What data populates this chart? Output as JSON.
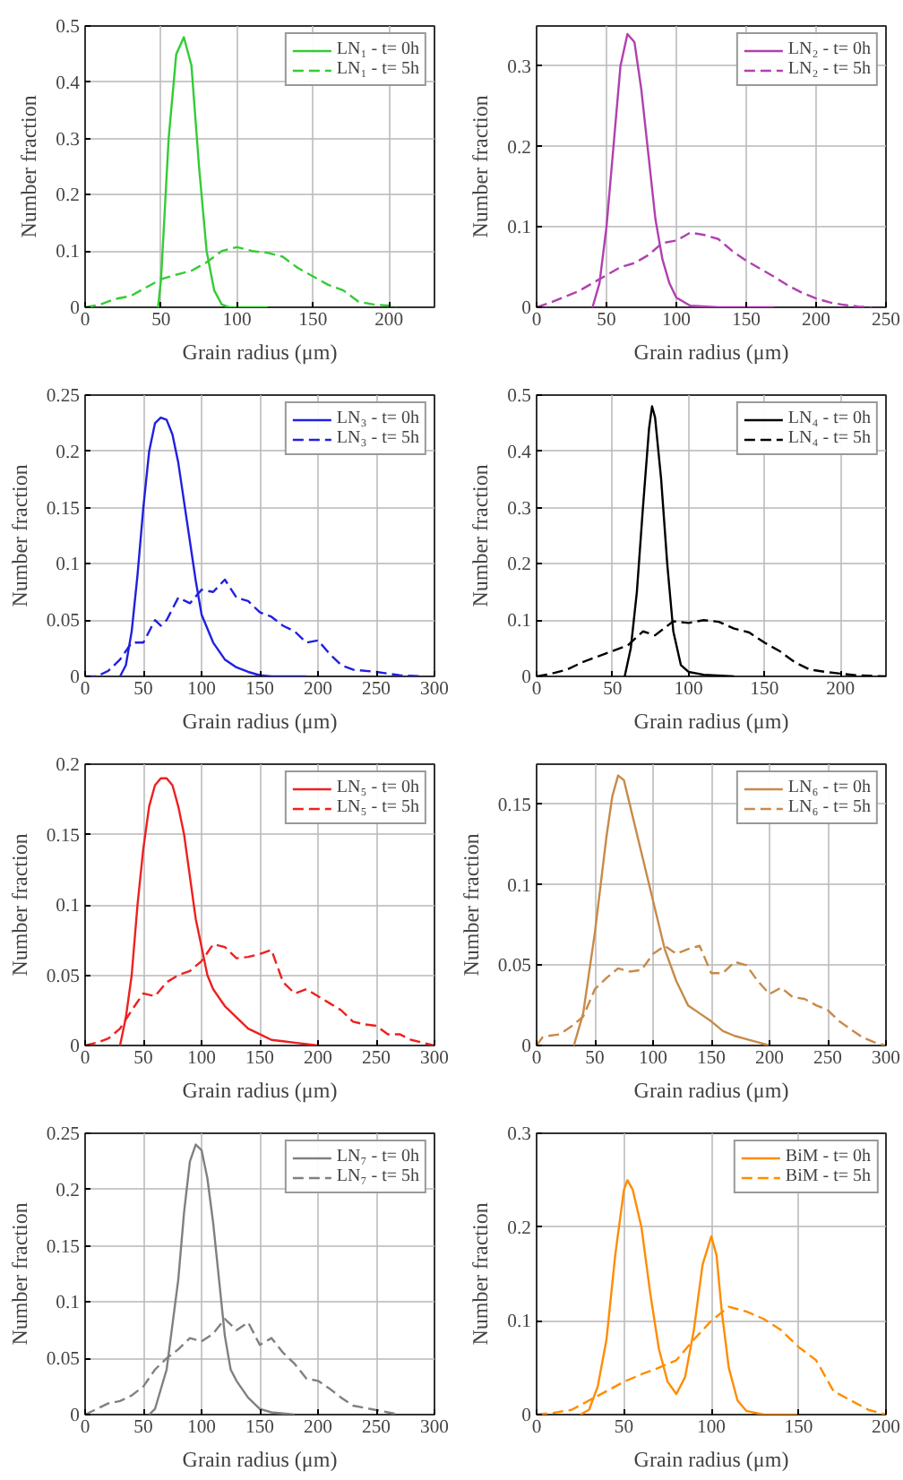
{
  "chart_data": [
    {
      "type": "line",
      "xlabel": "Grain radius (μm)",
      "ylabel": "Number fraction",
      "xlim": [
        0,
        230
      ],
      "ylim": [
        0,
        0.5
      ],
      "xticks": [
        0,
        50,
        100,
        150,
        200
      ],
      "yticks": [
        0,
        0.1,
        0.2,
        0.3,
        0.4,
        0.5
      ],
      "grid": true,
      "legend": "top right",
      "series": [
        {
          "name": "LN₁ - t= 0h",
          "color": "#33cc33",
          "line_style": "solid",
          "x": [
            48,
            50,
            55,
            60,
            65,
            70,
            75,
            80,
            85,
            90,
            95,
            120
          ],
          "values": [
            0,
            0.05,
            0.3,
            0.45,
            0.48,
            0.43,
            0.25,
            0.1,
            0.03,
            0.005,
            0,
            0
          ]
        },
        {
          "name": "LN₁ - t= 5h",
          "color": "#33cc33",
          "line_style": "dashed",
          "x": [
            0,
            10,
            20,
            30,
            40,
            50,
            60,
            70,
            80,
            90,
            100,
            110,
            120,
            130,
            140,
            150,
            160,
            170,
            180,
            190,
            200,
            205
          ],
          "values": [
            0,
            0.005,
            0.015,
            0.02,
            0.035,
            0.05,
            0.058,
            0.065,
            0.08,
            0.1,
            0.107,
            0.1,
            0.097,
            0.09,
            0.07,
            0.055,
            0.04,
            0.03,
            0.01,
            0.005,
            0.003,
            0
          ]
        }
      ]
    },
    {
      "type": "line",
      "xlabel": "Grain radius (μm)",
      "ylabel": "Number fraction",
      "xlim": [
        0,
        250
      ],
      "ylim": [
        0,
        0.35
      ],
      "xticks": [
        0,
        50,
        100,
        150,
        200,
        250
      ],
      "yticks": [
        0,
        0.1,
        0.2,
        0.3
      ],
      "grid": true,
      "legend": "top right",
      "series": [
        {
          "name": "LN₂ - t= 0h",
          "color": "#b040b0",
          "line_style": "solid",
          "x": [
            40,
            45,
            50,
            55,
            60,
            65,
            70,
            75,
            80,
            85,
            90,
            95,
            100,
            110,
            130,
            170
          ],
          "values": [
            0,
            0.03,
            0.1,
            0.2,
            0.3,
            0.34,
            0.33,
            0.27,
            0.19,
            0.11,
            0.06,
            0.03,
            0.012,
            0.002,
            0,
            0
          ]
        },
        {
          "name": "LN₂ - t= 5h",
          "color": "#b040b0",
          "line_style": "dashed",
          "x": [
            0,
            10,
            20,
            30,
            40,
            50,
            60,
            70,
            80,
            90,
            100,
            110,
            120,
            130,
            140,
            150,
            160,
            170,
            180,
            190,
            200,
            210,
            220,
            230,
            240
          ],
          "values": [
            0,
            0.006,
            0.013,
            0.02,
            0.03,
            0.04,
            0.05,
            0.055,
            0.065,
            0.08,
            0.083,
            0.093,
            0.09,
            0.085,
            0.07,
            0.058,
            0.048,
            0.038,
            0.027,
            0.018,
            0.011,
            0.006,
            0.003,
            0.001,
            0
          ]
        }
      ]
    },
    {
      "type": "line",
      "xlabel": "Grain radius (μm)",
      "ylabel": "Number fraction",
      "xlim": [
        0,
        300
      ],
      "ylim": [
        0,
        0.25
      ],
      "xticks": [
        0,
        50,
        100,
        150,
        200,
        250,
        300
      ],
      "yticks": [
        0,
        0.05,
        0.1,
        0.15,
        0.2,
        0.25
      ],
      "grid": true,
      "legend": "top right",
      "series": [
        {
          "name": "LN₃ - t= 0h",
          "color": "#2020e0",
          "line_style": "solid",
          "x": [
            30,
            35,
            40,
            45,
            50,
            55,
            60,
            65,
            70,
            75,
            80,
            85,
            90,
            95,
            100,
            110,
            120,
            130,
            140,
            150,
            160,
            190
          ],
          "values": [
            0,
            0.01,
            0.04,
            0.09,
            0.15,
            0.2,
            0.225,
            0.23,
            0.228,
            0.215,
            0.19,
            0.155,
            0.12,
            0.085,
            0.055,
            0.03,
            0.015,
            0.008,
            0.004,
            0.001,
            0,
            0
          ]
        },
        {
          "name": "LN₃ - t= 5h",
          "color": "#2020e0",
          "line_style": "dashed",
          "x": [
            0,
            10,
            20,
            30,
            40,
            50,
            60,
            65,
            70,
            80,
            90,
            100,
            110,
            120,
            130,
            140,
            150,
            160,
            170,
            180,
            190,
            200,
            210,
            220,
            230,
            250,
            270,
            290
          ],
          "values": [
            0,
            0,
            0.005,
            0.015,
            0.03,
            0.03,
            0.05,
            0.045,
            0.05,
            0.07,
            0.065,
            0.077,
            0.075,
            0.086,
            0.07,
            0.067,
            0.057,
            0.053,
            0.045,
            0.04,
            0.03,
            0.032,
            0.02,
            0.01,
            0.006,
            0.004,
            0.001,
            0
          ]
        }
      ]
    },
    {
      "type": "line",
      "xlabel": "Grain radius (μm)",
      "ylabel": "Number fraction",
      "xlim": [
        0,
        230
      ],
      "ylim": [
        0,
        0.5
      ],
      "xticks": [
        0,
        50,
        100,
        150,
        200
      ],
      "yticks": [
        0,
        0.1,
        0.2,
        0.3,
        0.4,
        0.5
      ],
      "grid": true,
      "legend": "top right",
      "series": [
        {
          "name": "LN₄ - t= 0h",
          "color": "#000000",
          "line_style": "solid",
          "x": [
            58,
            62,
            66,
            70,
            74,
            76,
            78,
            82,
            86,
            90,
            95,
            100,
            110,
            130
          ],
          "values": [
            0,
            0.05,
            0.15,
            0.3,
            0.44,
            0.48,
            0.46,
            0.35,
            0.2,
            0.08,
            0.02,
            0.008,
            0.003,
            0
          ]
        },
        {
          "name": "LN₄ - t= 5h",
          "color": "#000000",
          "line_style": "dashed",
          "x": [
            0,
            10,
            20,
            30,
            40,
            50,
            60,
            70,
            78,
            90,
            100,
            110,
            120,
            130,
            140,
            150,
            160,
            170,
            180,
            190,
            200,
            210,
            230
          ],
          "values": [
            0,
            0.005,
            0.012,
            0.025,
            0.035,
            0.045,
            0.055,
            0.08,
            0.073,
            0.098,
            0.095,
            0.1,
            0.097,
            0.085,
            0.078,
            0.06,
            0.045,
            0.025,
            0.012,
            0.008,
            0.005,
            0.002,
            0
          ]
        }
      ]
    },
    {
      "type": "line",
      "xlabel": "Grain radius (μm)",
      "ylabel": "Number fraction",
      "xlim": [
        0,
        300
      ],
      "ylim": [
        0,
        0.2
      ],
      "xticks": [
        0,
        50,
        100,
        150,
        200,
        250,
        300
      ],
      "yticks": [
        0,
        0.05,
        0.1,
        0.15,
        0.2
      ],
      "grid": true,
      "legend": "top right",
      "series": [
        {
          "name": "LN₅ - t= 0h",
          "color": "#ee2020",
          "line_style": "solid",
          "x": [
            30,
            35,
            40,
            45,
            50,
            55,
            60,
            65,
            70,
            75,
            80,
            85,
            90,
            95,
            100,
            105,
            110,
            120,
            130,
            140,
            150,
            160,
            170,
            180,
            190,
            200
          ],
          "values": [
            0,
            0.02,
            0.05,
            0.1,
            0.14,
            0.17,
            0.185,
            0.19,
            0.19,
            0.185,
            0.17,
            0.15,
            0.12,
            0.09,
            0.07,
            0.05,
            0.04,
            0.028,
            0.02,
            0.012,
            0.008,
            0.004,
            0.003,
            0.002,
            0.001,
            0
          ]
        },
        {
          "name": "LN₅ - t= 5h",
          "color": "#ee2020",
          "line_style": "dashed",
          "x": [
            0,
            10,
            20,
            30,
            40,
            50,
            60,
            70,
            80,
            90,
            100,
            110,
            120,
            130,
            140,
            150,
            160,
            170,
            180,
            190,
            200,
            210,
            220,
            230,
            240,
            250,
            260,
            270,
            280,
            290,
            300
          ],
          "values": [
            0,
            0.002,
            0.005,
            0.012,
            0.025,
            0.037,
            0.035,
            0.045,
            0.05,
            0.053,
            0.06,
            0.072,
            0.07,
            0.062,
            0.063,
            0.065,
            0.068,
            0.045,
            0.037,
            0.04,
            0.035,
            0.03,
            0.025,
            0.017,
            0.015,
            0.014,
            0.008,
            0.008,
            0.004,
            0.002,
            0
          ]
        }
      ]
    },
    {
      "type": "line",
      "xlabel": "Grain radius (μm)",
      "ylabel": "Number fraction",
      "xlim": [
        0,
        300
      ],
      "ylim": [
        0,
        0.175
      ],
      "xticks": [
        0,
        50,
        100,
        150,
        200,
        250,
        300
      ],
      "yticks": [
        0,
        0.05,
        0.1,
        0.15
      ],
      "grid": true,
      "legend": "top right",
      "series": [
        {
          "name": "LN₆ - t= 0h",
          "color": "#c88a4a",
          "line_style": "solid",
          "x": [
            32,
            40,
            50,
            60,
            65,
            70,
            75,
            80,
            90,
            100,
            110,
            120,
            130,
            140,
            150,
            160,
            170,
            180,
            190,
            200
          ],
          "values": [
            0,
            0.02,
            0.07,
            0.13,
            0.155,
            0.168,
            0.165,
            0.15,
            0.12,
            0.09,
            0.06,
            0.04,
            0.025,
            0.02,
            0.015,
            0.009,
            0.006,
            0.004,
            0.002,
            0
          ]
        },
        {
          "name": "LN₆ - t= 5h",
          "color": "#c88a4a",
          "line_style": "dashed",
          "x": [
            0,
            5,
            10,
            20,
            30,
            40,
            50,
            60,
            70,
            80,
            90,
            100,
            110,
            120,
            130,
            140,
            150,
            160,
            170,
            180,
            190,
            200,
            210,
            220,
            230,
            240,
            250,
            260,
            270,
            280,
            290,
            300
          ],
          "values": [
            0,
            0.005,
            0.006,
            0.007,
            0.012,
            0.018,
            0.035,
            0.042,
            0.048,
            0.046,
            0.047,
            0.057,
            0.062,
            0.057,
            0.06,
            0.062,
            0.045,
            0.045,
            0.052,
            0.05,
            0.04,
            0.032,
            0.036,
            0.03,
            0.029,
            0.025,
            0.022,
            0.015,
            0.01,
            0.005,
            0.002,
            0
          ]
        }
      ]
    },
    {
      "type": "line",
      "xlabel": "Grain radius (μm)",
      "ylabel": "Number fraction",
      "xlim": [
        0,
        300
      ],
      "ylim": [
        0,
        0.25
      ],
      "xticks": [
        0,
        50,
        100,
        150,
        200,
        250,
        300
      ],
      "yticks": [
        0,
        0.05,
        0.1,
        0.15,
        0.2,
        0.25
      ],
      "grid": true,
      "legend": "top right",
      "series": [
        {
          "name": "LN₇ - t= 0h",
          "color": "#808080",
          "line_style": "solid",
          "x": [
            55,
            60,
            70,
            80,
            85,
            90,
            95,
            100,
            105,
            110,
            115,
            120,
            125,
            130,
            140,
            150,
            160,
            170,
            180
          ],
          "values": [
            0,
            0.005,
            0.04,
            0.12,
            0.18,
            0.225,
            0.24,
            0.235,
            0.21,
            0.17,
            0.12,
            0.07,
            0.04,
            0.03,
            0.015,
            0.005,
            0.002,
            0.001,
            0
          ]
        },
        {
          "name": "LN₇ - t= 5h",
          "color": "#808080",
          "line_style": "dashed",
          "x": [
            0,
            10,
            20,
            30,
            40,
            50,
            60,
            70,
            80,
            90,
            100,
            110,
            120,
            130,
            140,
            150,
            160,
            170,
            180,
            190,
            200,
            210,
            220,
            230,
            240,
            250,
            260,
            270
          ],
          "values": [
            0,
            0.005,
            0.01,
            0.012,
            0.017,
            0.025,
            0.04,
            0.05,
            0.058,
            0.068,
            0.065,
            0.072,
            0.085,
            0.075,
            0.082,
            0.062,
            0.068,
            0.055,
            0.045,
            0.032,
            0.03,
            0.023,
            0.015,
            0.008,
            0.006,
            0.004,
            0.002,
            0
          ]
        }
      ]
    },
    {
      "type": "line",
      "xlabel": "Grain radius (μm)",
      "ylabel": "Number fraction",
      "xlim": [
        0,
        200
      ],
      "ylim": [
        0,
        0.3
      ],
      "xticks": [
        0,
        50,
        100,
        150,
        200
      ],
      "yticks": [
        0,
        0.1,
        0.2,
        0.3
      ],
      "grid": true,
      "legend": "top right",
      "series": [
        {
          "name": "BiM - t= 0h",
          "color": "#ff8c00",
          "line_style": "solid",
          "x": [
            25,
            30,
            35,
            40,
            45,
            50,
            52,
            55,
            60,
            65,
            70,
            75,
            80,
            85,
            90,
            95,
            100,
            103,
            106,
            110,
            115,
            120,
            130,
            150
          ],
          "values": [
            0,
            0.005,
            0.03,
            0.08,
            0.17,
            0.24,
            0.25,
            0.24,
            0.2,
            0.13,
            0.07,
            0.035,
            0.022,
            0.04,
            0.09,
            0.16,
            0.19,
            0.17,
            0.11,
            0.05,
            0.015,
            0.004,
            0,
            0
          ]
        },
        {
          "name": "BiM - t= 5h",
          "color": "#ff8c00",
          "line_style": "dashed",
          "x": [
            0,
            10,
            20,
            30,
            40,
            50,
            60,
            70,
            80,
            90,
            100,
            110,
            120,
            130,
            140,
            150,
            160,
            170,
            180,
            190,
            200
          ],
          "values": [
            0,
            0.002,
            0.005,
            0.015,
            0.025,
            0.035,
            0.043,
            0.05,
            0.058,
            0.08,
            0.1,
            0.115,
            0.11,
            0.102,
            0.09,
            0.072,
            0.058,
            0.025,
            0.015,
            0.005,
            0
          ]
        }
      ]
    }
  ]
}
